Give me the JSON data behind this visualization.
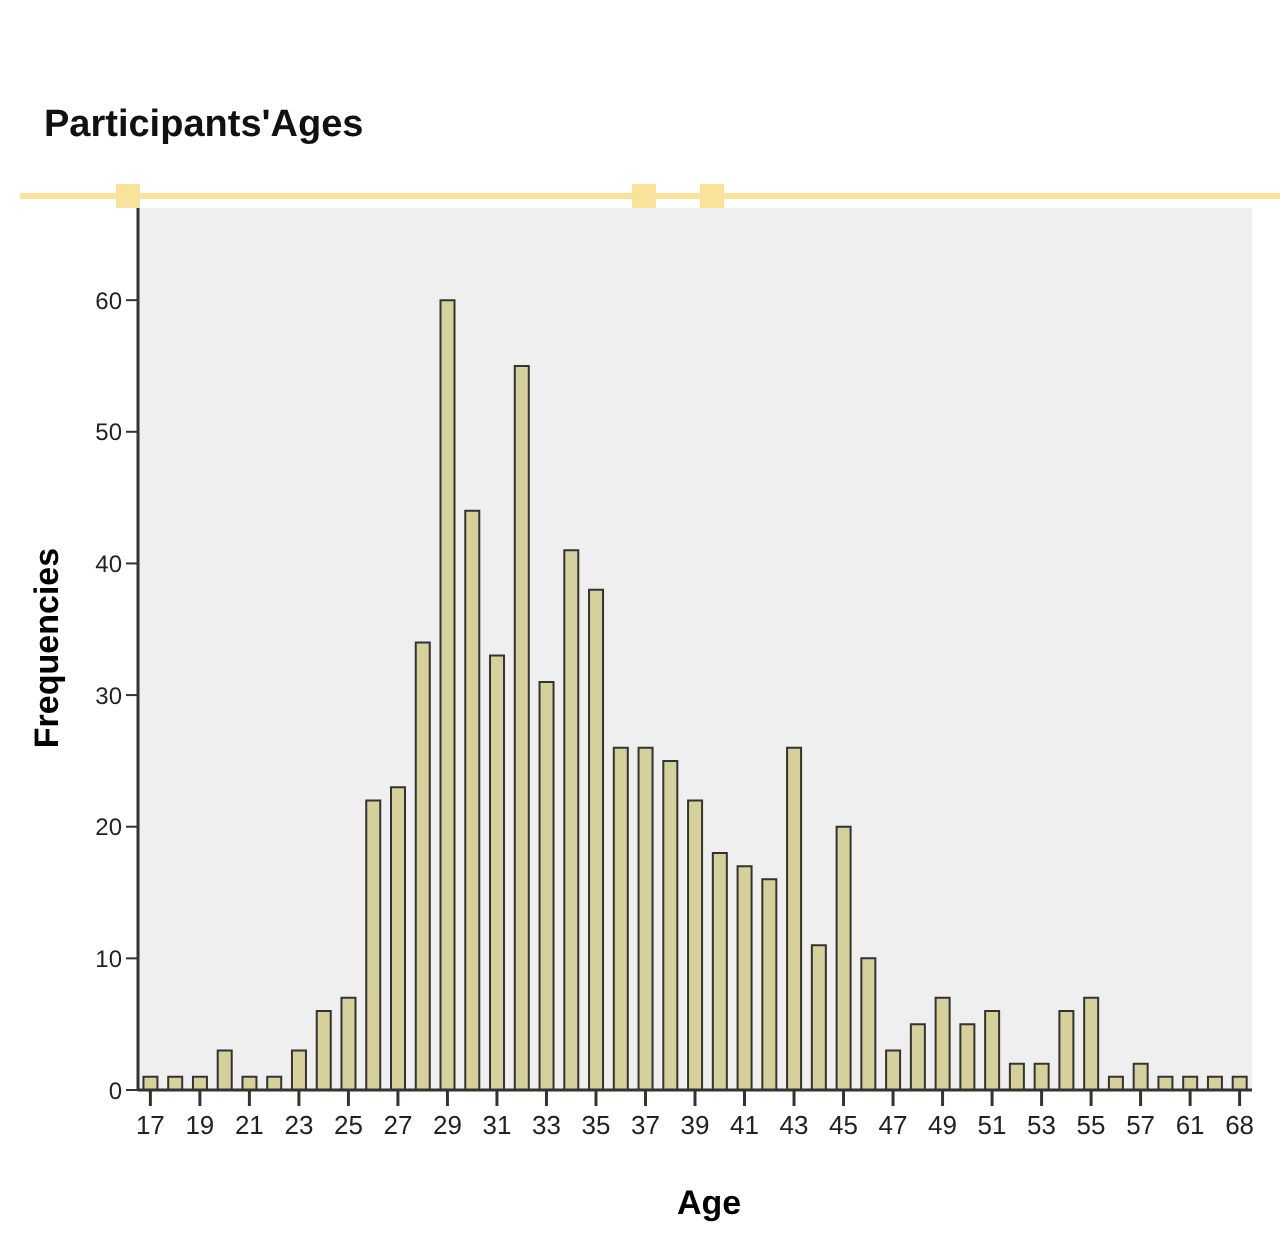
{
  "chart_data": {
    "type": "bar",
    "title": "Participants'Ages",
    "xlabel": "Age",
    "ylabel": "Frequencies",
    "categories": [
      "17",
      null,
      "19",
      null,
      "21",
      null,
      "23",
      null,
      "25",
      null,
      "27",
      null,
      "29",
      null,
      "31",
      null,
      "33",
      null,
      "35",
      null,
      "37",
      null,
      "39",
      null,
      "41",
      null,
      "43",
      null,
      "45",
      null,
      "47",
      null,
      "49",
      null,
      "51",
      null,
      "53",
      null,
      "55",
      null,
      "57",
      null,
      "61",
      null,
      "68"
    ],
    "values": [
      1,
      1,
      1,
      3,
      1,
      1,
      3,
      6,
      7,
      22,
      23,
      34,
      60,
      44,
      33,
      55,
      31,
      41,
      38,
      26,
      26,
      25,
      22,
      18,
      17,
      16,
      26,
      11,
      20,
      10,
      3,
      5,
      7,
      5,
      6,
      2,
      2,
      6,
      7,
      1,
      2,
      1,
      1,
      1,
      1
    ],
    "color": "#d6d09a",
    "ylim": [
      0,
      67
    ],
    "yticks": [
      0,
      10,
      20,
      30,
      40,
      50,
      60
    ],
    "grid": false
  }
}
